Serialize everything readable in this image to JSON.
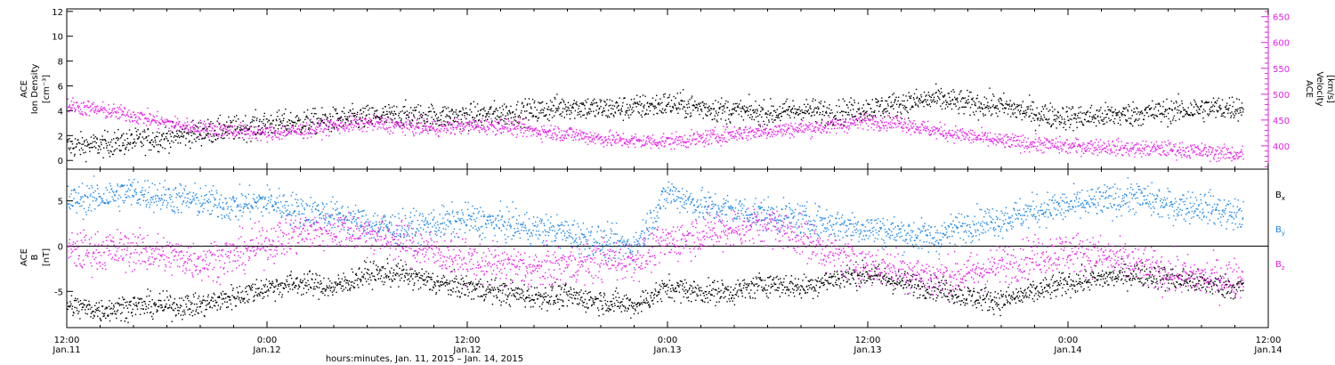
{
  "title": "",
  "x_axis": {
    "label": "hours:minutes, Jan. 11, 2015 – Jan. 14, 2015",
    "range_hours": [
      0,
      72
    ],
    "ticks": [
      {
        "time": "12:00",
        "date": "Jan.11",
        "h": 0
      },
      {
        "time": "0:00",
        "date": "Jan.12",
        "h": 12
      },
      {
        "time": "12:00",
        "date": "Jan.12",
        "h": 24
      },
      {
        "time": "0:00",
        "date": "Jan.13",
        "h": 36
      },
      {
        "time": "12:00",
        "date": "Jan.13",
        "h": 48
      },
      {
        "time": "0:00",
        "date": "Jan.14",
        "h": 60
      },
      {
        "time": "12:00",
        "date": "Jan.14",
        "h": 72
      }
    ]
  },
  "colors": {
    "black": "#000000",
    "magenta": "#e81ee8",
    "blue": "#1e88e6"
  },
  "chart_data": [
    {
      "type": "scatter",
      "panel": "plasma",
      "x_range_hours": [
        0,
        72
      ],
      "left_axis": {
        "label_lines": [
          "ACE",
          "Ion Density",
          "[cm⁻³]"
        ],
        "ylim": [
          -0.7,
          12.2
        ],
        "ticks": [
          "0",
          "2",
          "4",
          "6",
          "8",
          "10",
          "12"
        ]
      },
      "right_axis": {
        "label_lines": [
          "ACE",
          "Velocity",
          "[km/s]"
        ],
        "ylim": [
          355,
          665
        ],
        "ticks": [
          "400",
          "450",
          "500",
          "550",
          "600",
          "650"
        ]
      },
      "series": [
        {
          "axis": "left",
          "color": "black",
          "x": [
            0,
            2,
            4,
            6,
            8,
            10,
            12,
            14,
            16,
            18,
            20,
            22,
            24,
            26,
            28,
            30,
            32,
            34,
            36,
            38,
            40,
            42,
            44,
            46,
            48,
            50,
            52,
            54,
            56,
            58,
            60,
            62,
            64,
            66,
            68,
            70
          ],
          "y": [
            1.2,
            1.3,
            1.6,
            1.9,
            2.3,
            2.6,
            3.0,
            3.1,
            3.3,
            3.5,
            3.7,
            3.6,
            3.6,
            3.8,
            4.0,
            4.4,
            4.2,
            4.3,
            4.6,
            4.3,
            4.0,
            3.8,
            4.1,
            3.9,
            4.2,
            4.6,
            5.0,
            4.6,
            4.4,
            3.8,
            3.5,
            3.6,
            3.8,
            4.0,
            4.2,
            4.3
          ],
          "scatter": 0.9
        },
        {
          "axis": "right",
          "color": "magenta",
          "x": [
            0,
            2,
            4,
            6,
            8,
            10,
            12,
            14,
            16,
            18,
            20,
            22,
            24,
            26,
            28,
            30,
            32,
            34,
            36,
            38,
            40,
            42,
            44,
            46,
            48,
            50,
            52,
            54,
            56,
            58,
            60,
            62,
            64,
            66,
            68,
            70
          ],
          "y": [
            480,
            470,
            460,
            445,
            435,
            430,
            425,
            430,
            440,
            445,
            440,
            435,
            440,
            440,
            430,
            425,
            415,
            410,
            410,
            415,
            425,
            430,
            435,
            440,
            450,
            445,
            430,
            420,
            410,
            405,
            400,
            400,
            395,
            395,
            390,
            385
          ],
          "scatter": 14
        }
      ]
    },
    {
      "type": "scatter",
      "panel": "magnetic_field",
      "x_range_hours": [
        0,
        72
      ],
      "left_axis": {
        "label_lines": [
          "ACE",
          "B",
          "[nT]"
        ],
        "ylim": [
          -9,
          8.5
        ],
        "ticks": [
          "-5",
          "0",
          "5"
        ]
      },
      "zero_line": true,
      "series": [
        {
          "name": "Bx",
          "color": "black",
          "x": [
            0,
            2,
            4,
            6,
            8,
            10,
            12,
            14,
            16,
            18,
            20,
            22,
            24,
            26,
            28,
            30,
            32,
            34,
            36,
            38,
            40,
            42,
            44,
            46,
            48,
            50,
            52,
            54,
            56,
            58,
            60,
            62,
            64,
            66,
            68,
            70
          ],
          "y": [
            -6.5,
            -7.0,
            -6.5,
            -6.5,
            -6.5,
            -5.5,
            -4.5,
            -4.0,
            -4.5,
            -3.0,
            -3.0,
            -4.0,
            -4.5,
            -5.0,
            -5.5,
            -5.5,
            -6.0,
            -6.5,
            -4.5,
            -5.0,
            -5.0,
            -4.0,
            -4.5,
            -3.5,
            -3.0,
            -4.0,
            -4.5,
            -5.5,
            -6.0,
            -5.0,
            -4.0,
            -3.5,
            -3.0,
            -3.5,
            -4.0,
            -4.5
          ],
          "scatter": 1.2
        },
        {
          "name": "By",
          "color": "blue",
          "x": [
            0,
            2,
            4,
            6,
            8,
            10,
            12,
            14,
            16,
            18,
            20,
            22,
            24,
            26,
            28,
            30,
            32,
            34,
            36,
            38,
            40,
            42,
            44,
            46,
            48,
            50,
            52,
            54,
            56,
            58,
            60,
            62,
            64,
            66,
            68,
            70
          ],
          "y": [
            5.0,
            5.5,
            6.0,
            5.5,
            5.0,
            4.5,
            5.0,
            4.0,
            3.5,
            2.5,
            2.0,
            2.5,
            3.0,
            2.5,
            2.0,
            1.5,
            0.5,
            0.0,
            6.0,
            4.5,
            4.0,
            3.5,
            3.0,
            2.5,
            2.0,
            1.5,
            1.0,
            2.5,
            3.0,
            4.0,
            4.5,
            5.0,
            5.5,
            4.5,
            4.5,
            3.5
          ],
          "scatter": 1.6
        },
        {
          "name": "Bz",
          "color": "magenta",
          "x": [
            0,
            2,
            4,
            6,
            8,
            10,
            12,
            14,
            16,
            18,
            20,
            22,
            24,
            26,
            28,
            30,
            32,
            34,
            36,
            38,
            40,
            42,
            44,
            46,
            48,
            50,
            52,
            54,
            56,
            58,
            60,
            62,
            64,
            66,
            68,
            70
          ],
          "y": [
            -0.5,
            -0.5,
            -0.3,
            -1.0,
            -1.5,
            -1.0,
            0.5,
            1.5,
            2.0,
            1.5,
            0.5,
            -0.5,
            -1.5,
            -2.0,
            -2.5,
            -2.0,
            -1.5,
            -1.5,
            0.5,
            1.5,
            2.0,
            2.5,
            1.0,
            -1.0,
            -2.0,
            -2.5,
            -3.5,
            -3.0,
            -2.0,
            -1.0,
            -0.5,
            -1.0,
            -2.0,
            -3.0,
            -3.5,
            -3.5
          ],
          "scatter": 2.0
        }
      ],
      "legend": [
        {
          "base": "B",
          "sub": "x",
          "color": "black"
        },
        {
          "base": "B",
          "sub": "y",
          "color": "blue"
        },
        {
          "base": "B",
          "sub": "z",
          "color": "magenta"
        }
      ]
    }
  ]
}
